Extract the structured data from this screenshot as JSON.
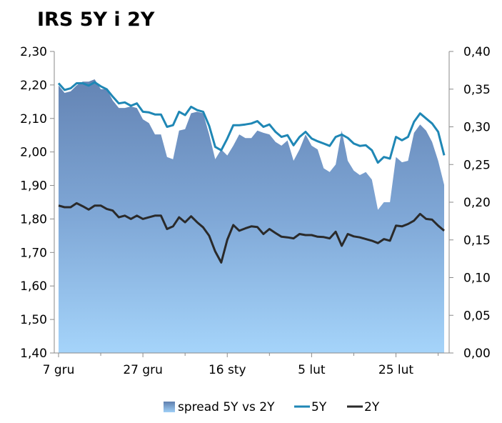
{
  "chart_data": {
    "type": "line",
    "title": "IRS 5Y i 2Y",
    "x_tick_labels": [
      "7 gru",
      "27 gru",
      "16 sty",
      "5 lut",
      "25 lut"
    ],
    "y_left": {
      "ylim": [
        1.4,
        2.3
      ],
      "step": 0.1,
      "tick_labels": [
        "1,40",
        "1,50",
        "1,60",
        "1,70",
        "1,80",
        "1,90",
        "2,00",
        "2,10",
        "2,20",
        "2,30"
      ]
    },
    "y_right": {
      "ylim": [
        0.0,
        0.4
      ],
      "step": 0.05,
      "tick_labels": [
        "0,00",
        "0,05",
        "0,10",
        "0,15",
        "0,20",
        "0,25",
        "0,30",
        "0,35",
        "0,40"
      ]
    },
    "grid": false,
    "legend_position": "bottom",
    "colors": {
      "spread": "#6b90bf",
      "area_bottom": "#9fcff6",
      "five_y": "#1f87b5",
      "two_y": "#2a2a2a"
    },
    "series": [
      {
        "name": "spread 5Y vs 2Y",
        "kind": "area",
        "axis": "right",
        "values": [
          0.355,
          0.345,
          0.347,
          0.355,
          0.36,
          0.36,
          0.363,
          0.35,
          0.35,
          0.335,
          0.325,
          0.325,
          0.327,
          0.325,
          0.31,
          0.305,
          0.29,
          0.29,
          0.26,
          0.257,
          0.295,
          0.297,
          0.318,
          0.32,
          0.318,
          0.29,
          0.257,
          0.27,
          0.262,
          0.275,
          0.29,
          0.285,
          0.285,
          0.295,
          0.292,
          0.29,
          0.28,
          0.275,
          0.282,
          0.255,
          0.27,
          0.29,
          0.275,
          0.27,
          0.245,
          0.24,
          0.25,
          0.295,
          0.255,
          0.242,
          0.236,
          0.24,
          0.23,
          0.19,
          0.2,
          0.2,
          0.26,
          0.253,
          0.255,
          0.292,
          0.303,
          0.295,
          0.28,
          0.255,
          0.223
        ]
      },
      {
        "name": "5Y",
        "kind": "line",
        "axis": "left",
        "values": [
          2.205,
          2.185,
          2.19,
          2.205,
          2.205,
          2.198,
          2.208,
          2.196,
          2.187,
          2.165,
          2.145,
          2.148,
          2.138,
          2.145,
          2.12,
          2.118,
          2.112,
          2.112,
          2.075,
          2.08,
          2.12,
          2.11,
          2.135,
          2.125,
          2.12,
          2.078,
          2.015,
          2.005,
          2.04,
          2.08,
          2.08,
          2.082,
          2.085,
          2.092,
          2.075,
          2.082,
          2.06,
          2.045,
          2.05,
          2.02,
          2.045,
          2.06,
          2.04,
          2.032,
          2.025,
          2.018,
          2.045,
          2.052,
          2.042,
          2.025,
          2.018,
          2.02,
          2.005,
          1.968,
          1.985,
          1.98,
          2.045,
          2.035,
          2.045,
          2.09,
          2.115,
          2.1,
          2.085,
          2.06,
          1.99
        ]
      },
      {
        "name": "2Y",
        "kind": "line",
        "axis": "left",
        "values": [
          1.84,
          1.835,
          1.835,
          1.847,
          1.838,
          1.828,
          1.84,
          1.84,
          1.83,
          1.825,
          1.805,
          1.81,
          1.8,
          1.81,
          1.8,
          1.805,
          1.81,
          1.81,
          1.77,
          1.778,
          1.805,
          1.79,
          1.808,
          1.79,
          1.775,
          1.75,
          1.703,
          1.67,
          1.738,
          1.782,
          1.765,
          1.772,
          1.778,
          1.776,
          1.755,
          1.77,
          1.758,
          1.747,
          1.745,
          1.742,
          1.755,
          1.752,
          1.752,
          1.747,
          1.746,
          1.742,
          1.762,
          1.72,
          1.755,
          1.748,
          1.745,
          1.74,
          1.735,
          1.728,
          1.74,
          1.735,
          1.78,
          1.778,
          1.785,
          1.795,
          1.815,
          1.8,
          1.798,
          1.78,
          1.765
        ]
      }
    ]
  }
}
